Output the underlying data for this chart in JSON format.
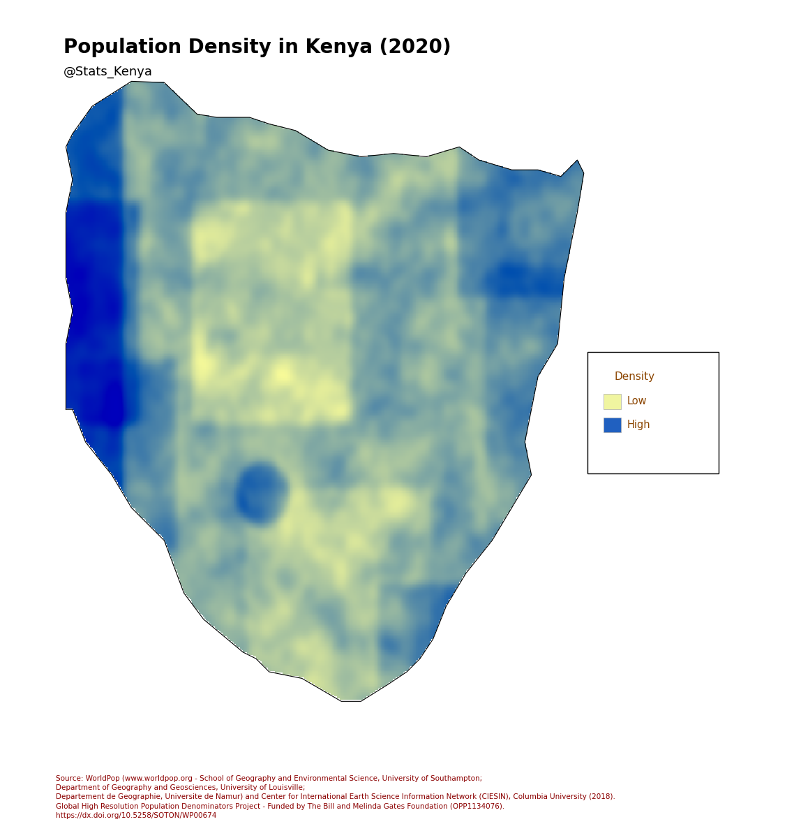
{
  "title": "Population Density in Kenya (2020)",
  "subtitle": "@Stats_Kenya",
  "title_fontsize": 20,
  "subtitle_fontsize": 13,
  "legend_title": "Density",
  "legend_labels": [
    "Low",
    "High"
  ],
  "legend_colors_low": "#f0f5a0",
  "legend_colors_high": "#2060c0",
  "color_low": "#e8f09a",
  "color_high": "#2166ac",
  "color_medium_low": "#b8d4b0",
  "color_medium_high": "#5a9fd4",
  "background_color": "#ffffff",
  "source_text": "Source: WorldPop (www.worldpop.org - School of Geography and Environmental Science, University of Southampton;\nDepartment of Geography and Geosciences, University of Louisville;\nDepartement de Geographie, Universite de Namur) and Center for International Earth Science Information Network (CIESIN), Columbia University (2018).\nGlobal High Resolution Population Denominators Project - Funded by The Bill and Melinda Gates Foundation (OPP1134076).\nhttps://dx.doi.org/10.5258/SOTON/WP00674",
  "source_fontsize": 7.5,
  "source_color": "#8B0000",
  "legend_title_color": "#8B4500",
  "legend_label_color": "#8B4500",
  "figsize": [
    11.38,
    12.0
  ],
  "dpi": 100
}
